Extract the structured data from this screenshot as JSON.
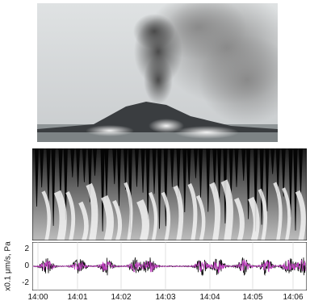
{
  "photo": {
    "icon": "volcano-eruption-photo"
  },
  "spectrogram": {
    "icon": "spectrogram-image"
  },
  "waveform": {
    "ylabel": "x0.1 μm/s, Pa",
    "yticks": [
      "2",
      "0",
      "-2"
    ],
    "xticks": [
      "14:00",
      "14:01",
      "14:02",
      "14:03",
      "14:04",
      "14:05",
      "14:06"
    ],
    "colors": {
      "seismic": "#111111",
      "infrasound": "#c040c0"
    }
  }
}
